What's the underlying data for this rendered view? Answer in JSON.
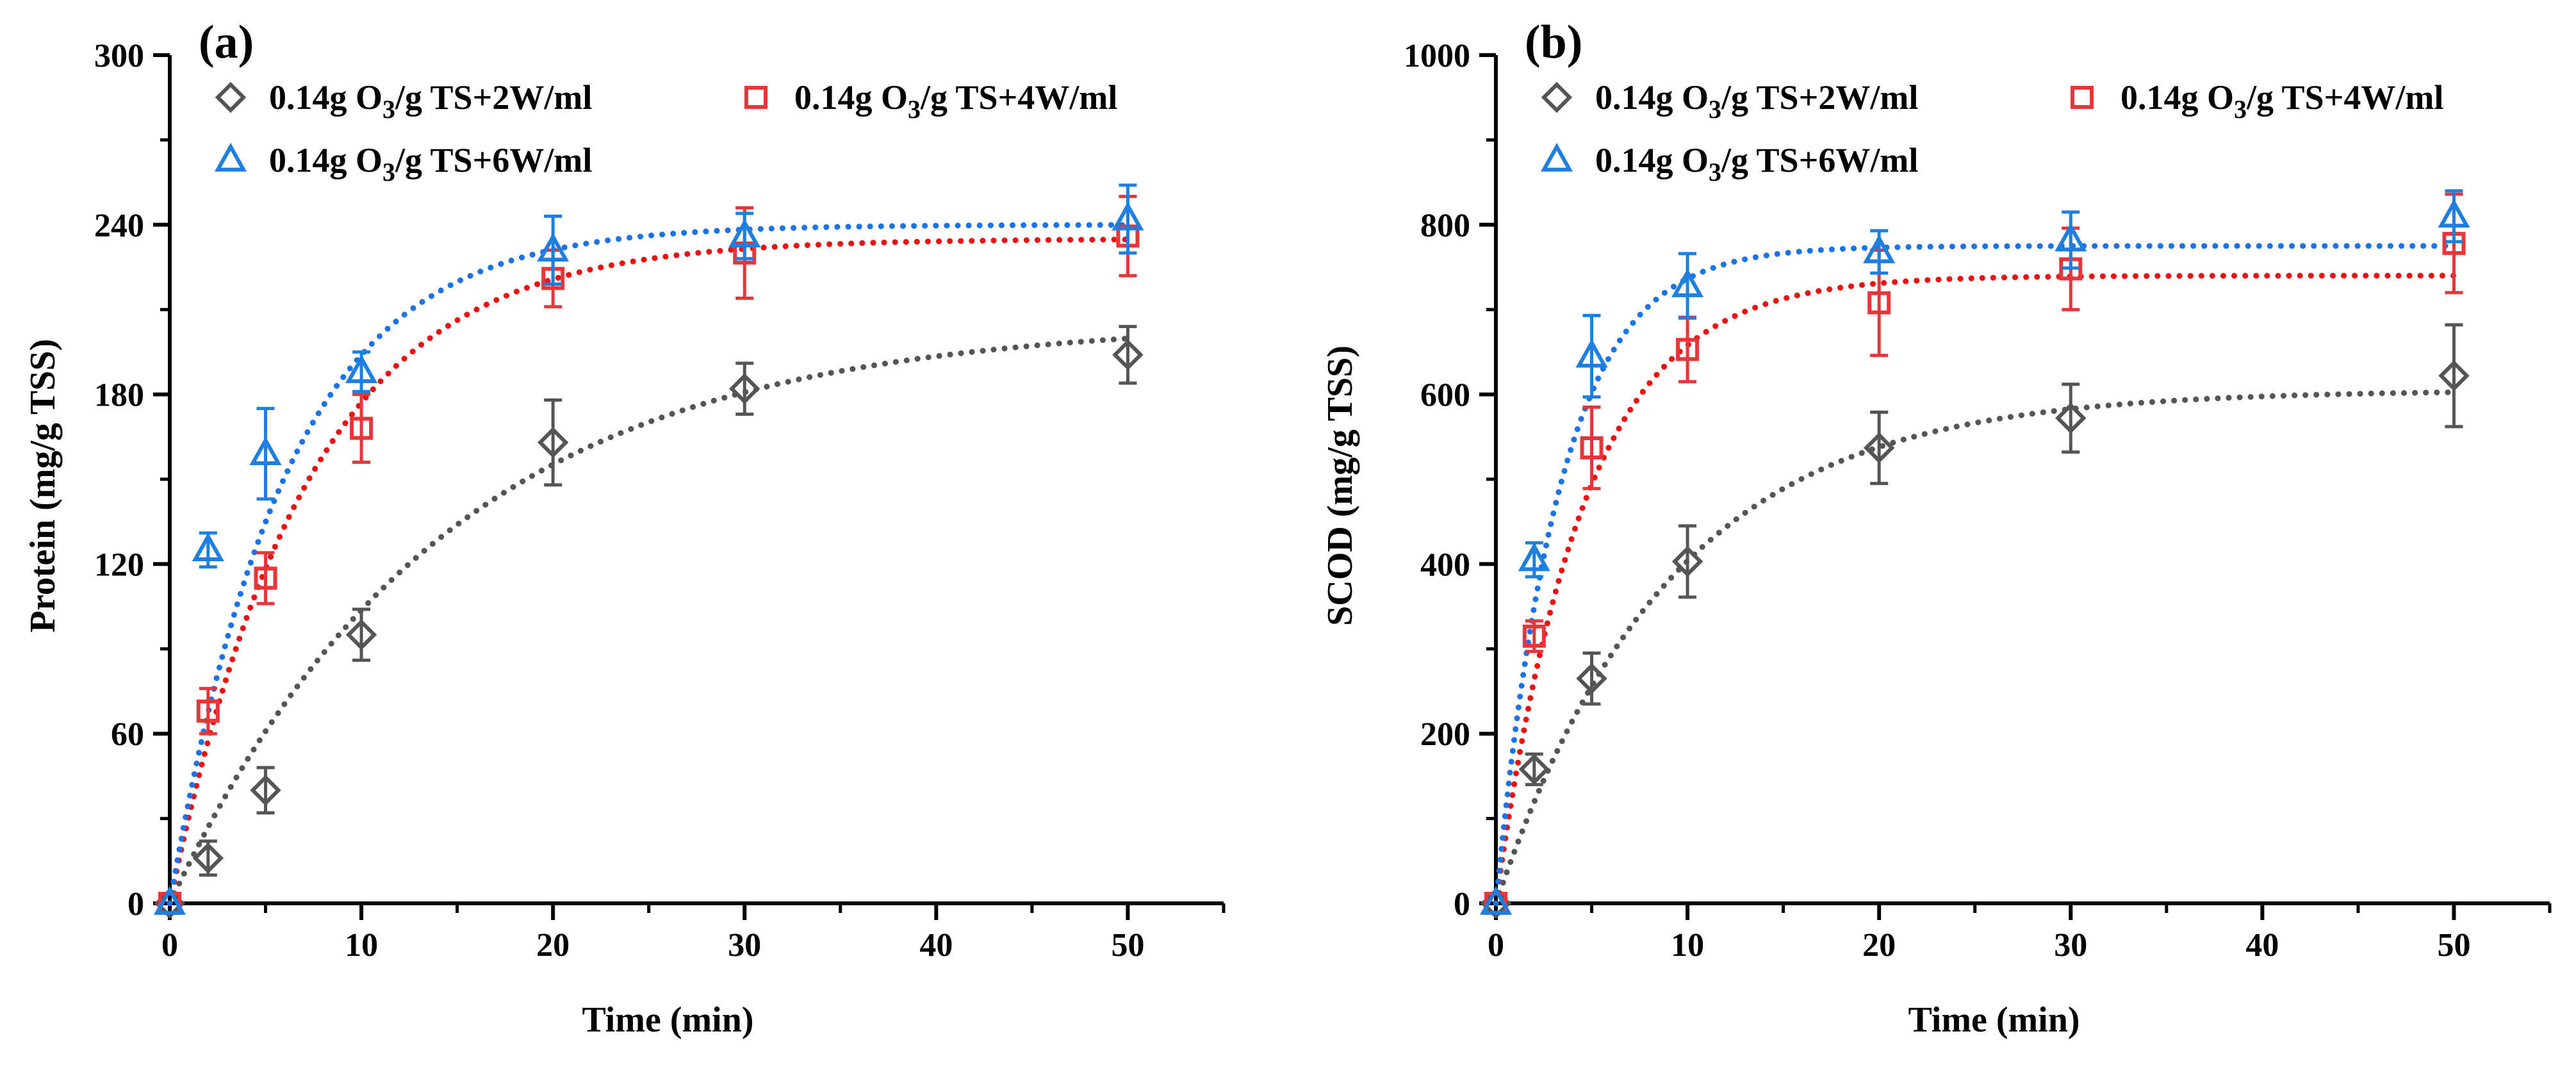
{
  "chart_data": [
    {
      "type": "scatter",
      "panel_label": "(a)",
      "title": "",
      "xlabel": "Time (min)",
      "ylabel": "Protein (mg/g TSS)",
      "xlim": [
        0,
        55
      ],
      "ylim": [
        0,
        300
      ],
      "xticks": [
        0,
        10,
        20,
        30,
        40,
        50
      ],
      "yticks": [
        0,
        60,
        120,
        180,
        240,
        300
      ],
      "x": [
        0,
        2,
        5,
        10,
        20,
        30,
        50
      ],
      "series": [
        {
          "name": "0.14g O3/g TS+2W/ml",
          "label_main": "0.14g O",
          "label_sub": "3",
          "label_rest": "/g TS+2W/ml",
          "marker": "diamond",
          "color": "#555555",
          "fit_color": "#555555",
          "values": [
            0,
            16,
            40,
            95,
            163,
            182,
            194
          ],
          "errors": [
            0,
            6,
            8,
            9,
            15,
            9,
            10
          ],
          "fit": {
            "a": 206,
            "k": 0.07
          }
        },
        {
          "name": "0.14g O3/g TS+4W/ml",
          "label_main": "0.14g O",
          "label_sub": "3",
          "label_rest": "/g TS+4W/ml",
          "marker": "square",
          "color": "#e8353a",
          "fit_color": "#ee1111",
          "values": [
            0,
            68,
            115,
            168,
            221,
            230,
            236
          ],
          "errors": [
            0,
            8,
            9,
            12,
            10,
            16,
            14
          ],
          "fit": {
            "a": 235,
            "k": 0.14
          }
        },
        {
          "name": "0.14g O3/g TS+6W/ml",
          "label_main": "0.14g O",
          "label_sub": "3",
          "label_rest": "/g TS+6W/ml",
          "marker": "triangle",
          "color": "#1e7fe0",
          "fit_color": "#1a73e8",
          "values": [
            0,
            125,
            159,
            188,
            231,
            236,
            242
          ],
          "errors": [
            0,
            6,
            16,
            7,
            12,
            8,
            12
          ],
          "fit": {
            "a": 240,
            "k": 0.165
          }
        }
      ],
      "legend": "top-left"
    },
    {
      "type": "scatter",
      "panel_label": "(b)",
      "title": "",
      "xlabel": "Time (min)",
      "ylabel": "SCOD (mg/g TSS)",
      "xlim": [
        0,
        55
      ],
      "ylim": [
        0,
        1000
      ],
      "xticks": [
        0,
        10,
        20,
        30,
        40,
        50
      ],
      "yticks": [
        0,
        200,
        400,
        600,
        800,
        1000
      ],
      "x": [
        0,
        2,
        5,
        10,
        20,
        30,
        50
      ],
      "series": [
        {
          "name": "0.14g O3/g TS+2W/ml",
          "label_main": "0.14g O",
          "label_sub": "3",
          "label_rest": "/g TS+2W/ml",
          "marker": "diamond",
          "color": "#555555",
          "fit_color": "#555555",
          "values": [
            0,
            158,
            265,
            403,
            537,
            572,
            622
          ],
          "errors": [
            0,
            18,
            30,
            42,
            42,
            40,
            60
          ],
          "fit": {
            "a": 605,
            "k": 0.11
          }
        },
        {
          "name": "0.14g O3/g TS+4W/ml",
          "label_main": "0.14g O",
          "label_sub": "3",
          "label_rest": "/g TS+4W/ml",
          "marker": "square",
          "color": "#e8353a",
          "fit_color": "#ee1111",
          "values": [
            0,
            315,
            537,
            653,
            708,
            748,
            778
          ],
          "errors": [
            0,
            18,
            48,
            38,
            62,
            48,
            58
          ],
          "fit": {
            "a": 740,
            "k": 0.22
          }
        },
        {
          "name": "0.14g O3/g TS+6W/ml",
          "label_main": "0.14g O",
          "label_sub": "3",
          "label_rest": "/g TS+6W/ml",
          "marker": "triangle",
          "color": "#1e7fe0",
          "fit_color": "#1a73e8",
          "values": [
            0,
            405,
            645,
            728,
            768,
            782,
            810
          ],
          "errors": [
            0,
            20,
            48,
            38,
            25,
            33,
            30
          ],
          "fit": {
            "a": 775,
            "k": 0.3
          }
        }
      ],
      "legend": "top-left"
    }
  ]
}
